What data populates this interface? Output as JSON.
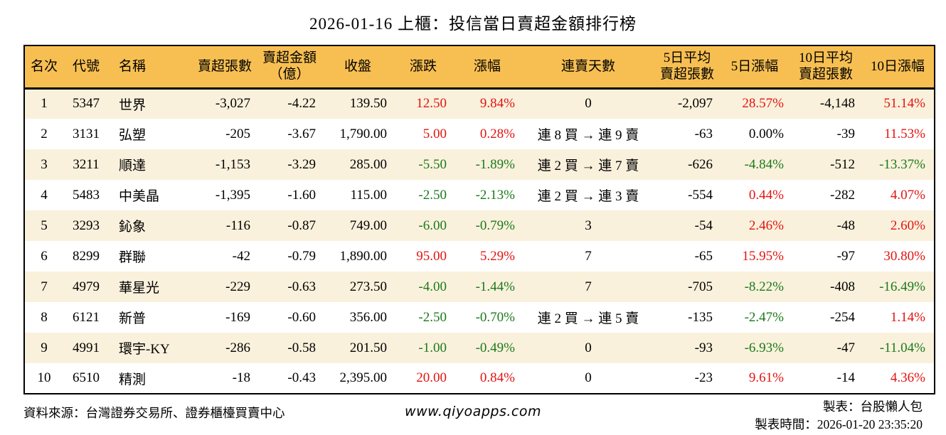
{
  "title": "2026-01-16 上櫃：投信當日賣超金額排行榜",
  "colors": {
    "header_bg": "#f7bf52",
    "row_alt_bg": "#faf1dc",
    "up_red": "#e11410",
    "down_green": "#1a7a1a",
    "border": "#000000"
  },
  "table": {
    "headers": [
      "名次",
      "代號",
      "名稱",
      "賣超張數",
      "賣超金額\n（億）",
      "收盤",
      "漲跌",
      "漲幅",
      "連賣天數",
      "5日平均\n賣超張數",
      "5日漲幅",
      "10日平均\n賣超張數",
      "10日漲幅"
    ],
    "rows": [
      {
        "cells": [
          "1",
          "5347",
          "世界",
          "-3,027",
          "-4.22",
          "139.50",
          "12.50",
          "9.84%",
          "0",
          "-2,097",
          "28.57%",
          "-4,148",
          "51.14%"
        ],
        "colors": {
          "6": "red",
          "7": "red",
          "10": "red",
          "12": "red"
        }
      },
      {
        "cells": [
          "2",
          "3131",
          "弘塑",
          "-205",
          "-3.67",
          "1,790.00",
          "5.00",
          "0.28%",
          "連 8 買 → 連 9 賣",
          "-63",
          "0.00%",
          "-39",
          "11.53%"
        ],
        "colors": {
          "6": "red",
          "7": "red",
          "12": "red"
        }
      },
      {
        "cells": [
          "3",
          "3211",
          "順達",
          "-1,153",
          "-3.29",
          "285.00",
          "-5.50",
          "-1.89%",
          "連 2 買 → 連 7 賣",
          "-626",
          "-4.84%",
          "-512",
          "-13.37%"
        ],
        "colors": {
          "6": "green",
          "7": "green",
          "10": "green",
          "12": "green"
        }
      },
      {
        "cells": [
          "4",
          "5483",
          "中美晶",
          "-1,395",
          "-1.60",
          "115.00",
          "-2.50",
          "-2.13%",
          "連 2 買 → 連 3 賣",
          "-554",
          "0.44%",
          "-282",
          "4.07%"
        ],
        "colors": {
          "6": "green",
          "7": "green",
          "10": "red",
          "12": "red"
        }
      },
      {
        "cells": [
          "5",
          "3293",
          "鈊象",
          "-116",
          "-0.87",
          "749.00",
          "-6.00",
          "-0.79%",
          "3",
          "-54",
          "2.46%",
          "-48",
          "2.60%"
        ],
        "colors": {
          "6": "green",
          "7": "green",
          "10": "red",
          "12": "red"
        }
      },
      {
        "cells": [
          "6",
          "8299",
          "群聯",
          "-42",
          "-0.79",
          "1,890.00",
          "95.00",
          "5.29%",
          "7",
          "-65",
          "15.95%",
          "-97",
          "30.80%"
        ],
        "colors": {
          "6": "red",
          "7": "red",
          "10": "red",
          "12": "red"
        }
      },
      {
        "cells": [
          "7",
          "4979",
          "華星光",
          "-229",
          "-0.63",
          "273.50",
          "-4.00",
          "-1.44%",
          "7",
          "-705",
          "-8.22%",
          "-408",
          "-16.49%"
        ],
        "colors": {
          "6": "green",
          "7": "green",
          "10": "green",
          "12": "green"
        }
      },
      {
        "cells": [
          "8",
          "6121",
          "新普",
          "-169",
          "-0.60",
          "356.00",
          "-2.50",
          "-0.70%",
          "連 2 買 → 連 5 賣",
          "-135",
          "-2.47%",
          "-254",
          "1.14%"
        ],
        "colors": {
          "6": "green",
          "7": "green",
          "10": "green",
          "12": "red"
        }
      },
      {
        "cells": [
          "9",
          "4991",
          "環宇-KY",
          "-286",
          "-0.58",
          "201.50",
          "-1.00",
          "-0.49%",
          "0",
          "-93",
          "-6.93%",
          "-47",
          "-11.04%"
        ],
        "colors": {
          "6": "green",
          "7": "green",
          "10": "green",
          "12": "green"
        }
      },
      {
        "cells": [
          "10",
          "6510",
          "精測",
          "-18",
          "-0.43",
          "2,395.00",
          "20.00",
          "0.84%",
          "0",
          "-23",
          "9.61%",
          "-14",
          "4.36%"
        ],
        "colors": {
          "6": "red",
          "7": "red",
          "10": "red",
          "12": "red"
        }
      }
    ]
  },
  "footer": {
    "source": "資料來源：台灣證券交易所、證券櫃檯買賣中心",
    "website": "www.qiyoapps.com",
    "maker": "製表：台股懶人包",
    "time": "製表時間：2026-01-20 23:35:20"
  }
}
